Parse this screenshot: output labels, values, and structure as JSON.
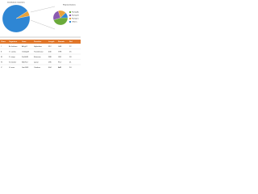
{
  "figure": {
    "main_pie": {
      "title": "Distribution of proteins",
      "values": [
        94,
        6
      ],
      "colors": [
        "#2e86d4",
        "#e8a23a"
      ]
    },
    "detail_pie": {
      "title": "Representatives",
      "labels": [
        "Family A",
        "Family B",
        "Family C",
        "Others"
      ],
      "values": [
        45,
        25,
        18,
        12
      ],
      "colors": [
        "#6aaa3a",
        "#8a5ab0",
        "#e8a23a",
        "#2e86d4"
      ]
    }
  },
  "table": {
    "columns": [
      "Class",
      "Organism",
      "Gene",
      "Function",
      "Length",
      "Domain",
      "Ref."
    ],
    "rows": [
      [
        "I",
        "A. thaliana",
        "At1g01",
        "Hydrolase",
        "512",
        "GH1",
        "12"
      ],
      [
        "II",
        "O. sativa",
        "Os02g03",
        "Transferase",
        "430",
        "GT8",
        "15"
      ],
      [
        "III",
        "Z. mays",
        "Zm0045",
        "Esterase",
        "388",
        "CE1",
        "18"
      ],
      [
        "IV",
        "S. bicolor",
        "Sb0712",
        "Lyase",
        "295",
        "PL4",
        "21"
      ],
      [
        "V",
        "G. max",
        "Gm1103",
        "Oxidase",
        "604",
        "AA3",
        "24"
      ]
    ]
  }
}
